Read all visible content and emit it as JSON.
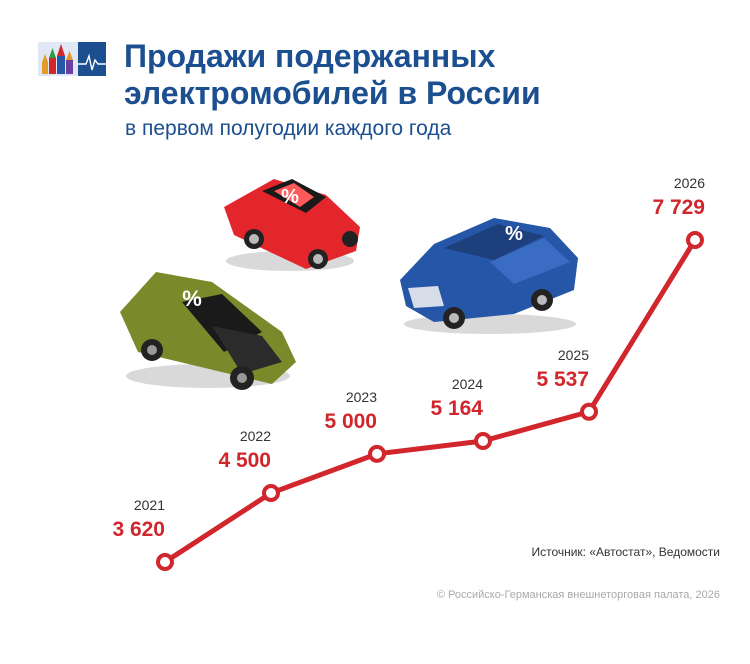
{
  "header": {
    "title": "Продажи подержанных электромобилей в России",
    "subtitle": "в первом полугодии каждого года"
  },
  "footer": {
    "source": "Источник: «Автостат», Ведомости",
    "copyright": "© Российско-Германская внешнеторговая палата, 2026"
  },
  "illustrations": {
    "badge_text": "%"
  },
  "colors": {
    "title": "#1c4f8f",
    "series": "#d0262c",
    "year_label": "#333333",
    "car_red": "#e3262c",
    "car_green": "#7a8a2a",
    "car_blue": "#2656a8"
  },
  "chart_data": {
    "type": "line",
    "title": "Продажи подержанных электромобилей в России",
    "subtitle": "в первом полугодии каждого года",
    "categories": [
      "2021",
      "2022",
      "2023",
      "2024",
      "2025",
      "2026"
    ],
    "values": [
      3620,
      4500,
      5000,
      5164,
      5537,
      7729
    ],
    "value_labels": [
      "3 620",
      "4 500",
      "5 000",
      "5 164",
      "5 537",
      "7 729"
    ],
    "xlabel": "",
    "ylabel": "",
    "ylim": [
      3620,
      7729
    ],
    "grid": false,
    "legend": "none"
  }
}
